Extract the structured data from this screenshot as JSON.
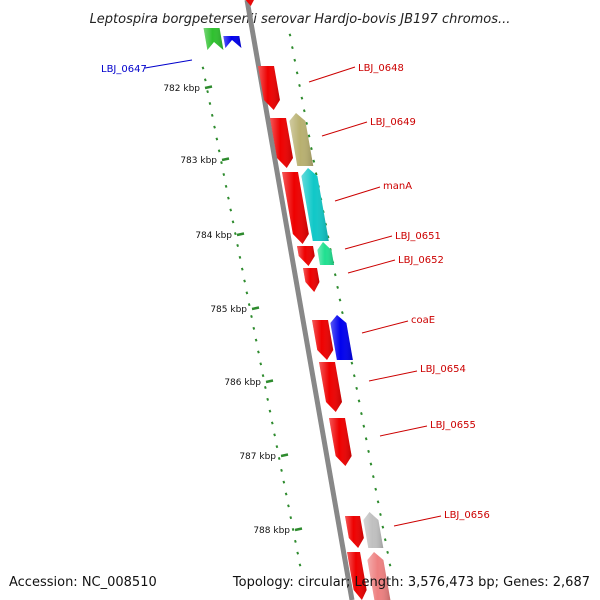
{
  "title": "Leptospira borgpetersenii serovar Hardjo-bovis JB197 chromos...",
  "footer": {
    "accession": "Accession: NC_008510",
    "summary": "Topology: circular; Length: 3,576,473 bp; Genes: 2,687"
  },
  "colors": {
    "backbone": "#888888",
    "tick": "#2e8b2e",
    "label_red": "#cc0000",
    "label_blue": "#0000cc",
    "leader_red": "#cc0000",
    "leader_blue": "#0000cc"
  },
  "scale_ticks": [
    "782 kbp",
    "783 kbp",
    "784 kbp",
    "785 kbp",
    "786 kbp",
    "787 kbp",
    "788 kbp"
  ],
  "gene_labels": [
    {
      "label": "LBJ_0647",
      "color": "blue"
    },
    {
      "label": "LBJ_0648",
      "color": "red"
    },
    {
      "label": "LBJ_0649",
      "color": "red"
    },
    {
      "label": "manA",
      "color": "red"
    },
    {
      "label": "LBJ_0651",
      "color": "red"
    },
    {
      "label": "LBJ_0652",
      "color": "red"
    },
    {
      "label": "coaE",
      "color": "red"
    },
    {
      "label": "LBJ_0654",
      "color": "red"
    },
    {
      "label": "LBJ_0655",
      "color": "red"
    },
    {
      "label": "LBJ_0656",
      "color": "red"
    }
  ],
  "features": [
    {
      "color": "#ee0000",
      "strand": "reverse"
    },
    {
      "color": "#2ec02e",
      "strand": "forward"
    },
    {
      "color": "#0000ee",
      "strand": "forward"
    },
    {
      "color": "#ee0000",
      "strand": "reverse"
    },
    {
      "color": "#ee0000",
      "strand": "reverse"
    },
    {
      "color": "#b8b070",
      "strand": "forward"
    },
    {
      "color": "#ee0000",
      "strand": "reverse"
    },
    {
      "color": "#10c8c8",
      "strand": "forward"
    },
    {
      "color": "#ee0000",
      "strand": "reverse"
    },
    {
      "color": "#20e090",
      "strand": "forward"
    },
    {
      "color": "#ee0000",
      "strand": "reverse"
    },
    {
      "color": "#ee0000",
      "strand": "reverse"
    },
    {
      "color": "#0000ee",
      "strand": "forward"
    },
    {
      "color": "#ee0000",
      "strand": "reverse"
    },
    {
      "color": "#ee0000",
      "strand": "reverse"
    },
    {
      "color": "#ee0000",
      "strand": "reverse"
    },
    {
      "color": "#c0c0c0",
      "strand": "forward"
    },
    {
      "color": "#ee0000",
      "strand": "reverse"
    },
    {
      "color": "#ee8080",
      "strand": "forward"
    }
  ]
}
